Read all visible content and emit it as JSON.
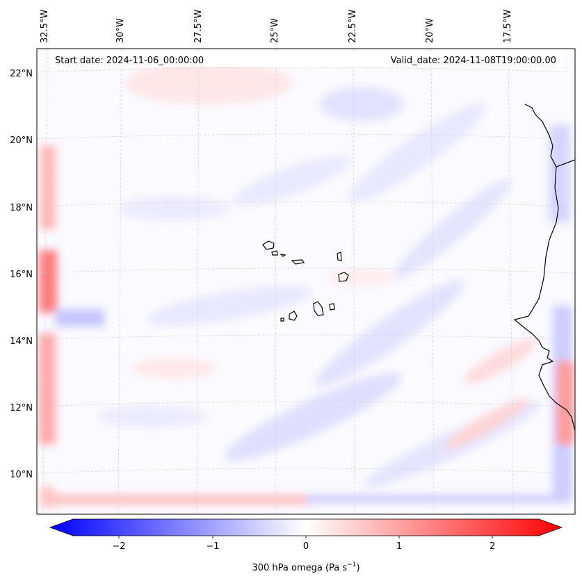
{
  "map": {
    "start_date": "Start date: 2024-11-06_00:00:00",
    "valid_date": "Valid_date: 2024-11-08T19:00:00.00",
    "lon_labels": [
      "32.5°W",
      "30°W",
      "27.5°W",
      "25°W",
      "22.5°W",
      "20°W",
      "17.5°W"
    ],
    "lat_labels": [
      "22°N",
      "20°N",
      "18°N",
      "16°N",
      "14°N",
      "12°N",
      "10°N"
    ],
    "gridlines": true,
    "variable": "300 hPa omega",
    "units": "Pa s",
    "units_exponent": "−1",
    "colormap": "bwr",
    "colors": {
      "negative": "#0000ff",
      "zero": "#ffffff",
      "positive": "#ff0000",
      "coast": "#000000"
    }
  },
  "colorbar": {
    "ticks": [
      "−2",
      "−1",
      "0",
      "1",
      "2"
    ],
    "range": [
      -2.75,
      2.75
    ],
    "extend": "both"
  }
}
